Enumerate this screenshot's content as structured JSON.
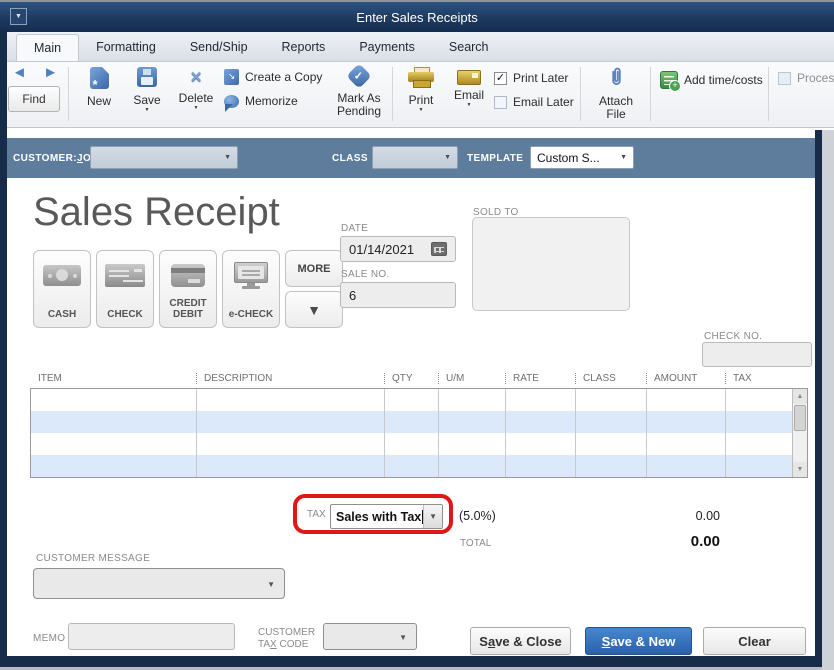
{
  "window": {
    "title": "Enter Sales Receipts"
  },
  "tabs": [
    "Main",
    "Formatting",
    "Send/Ship",
    "Reports",
    "Payments",
    "Search"
  ],
  "toolbar": {
    "find": "Find",
    "new": "New",
    "save": "Save",
    "delete": "Delete",
    "create_copy": "Create a Copy",
    "memorize": "Memorize",
    "mark_pending_line1": "Mark As",
    "mark_pending_line2": "Pending",
    "print": "Print",
    "email": "Email",
    "print_later": "Print Later",
    "email_later": "Email Later",
    "attach_line1": "Attach",
    "attach_line2": "File",
    "add_time_costs": "Add time/costs",
    "process_partial": "Proces"
  },
  "context_bar": {
    "customer_job": {
      "pre": "CUSTOMER:",
      "key": "J",
      "post": "OB"
    },
    "class_label": "CLASS",
    "template_label": "TEMPLATE",
    "template_value": "Custom S..."
  },
  "receipt": {
    "heading": "Sales Receipt",
    "payment_methods": [
      "CASH",
      "CHECK",
      "CREDIT DEBIT",
      "e-CHECK"
    ],
    "more_label": "MORE",
    "date_label": "DATE",
    "date_value": "01/14/2021",
    "sale_no_label": "SALE NO.",
    "sale_no_value": "6",
    "sold_to_label": "SOLD TO",
    "check_no_label": "CHECK NO."
  },
  "items_table": {
    "columns": [
      "ITEM",
      "DESCRIPTION",
      "QTY",
      "U/M",
      "RATE",
      "CLASS",
      "AMOUNT",
      "TAX"
    ],
    "row_count": 4
  },
  "totals": {
    "tax_label": "TAX",
    "tax_dropdown_value": "Sales with Tax",
    "tax_rate": "(5.0%)",
    "tax_amount": "0.00",
    "total_label": "TOTAL",
    "total_amount": "0.00"
  },
  "footer": {
    "customer_message_label": "CUSTOMER MESSAGE",
    "memo_label": "MEMO",
    "customer_tax_code_line1": "CUSTOMER",
    "customer_tax_code_line2": {
      "pre": "TA",
      "key": "X",
      "post": " CODE"
    },
    "save_close": {
      "pre": "S",
      "key": "a",
      "post": "ve & Close"
    },
    "save_new": {
      "pre": "",
      "key": "S",
      "post": "ave & New"
    },
    "clear": "Clear"
  },
  "icons": {
    "window_menu": "▼",
    "back": "◄",
    "forward": "►",
    "dropdown": "▼",
    "up": "▲",
    "down": "▼",
    "check": "✓",
    "x": "×",
    "copy_arrow": "↘",
    "more_arrow": "▼"
  },
  "colors": {
    "titlebar": "#1d3a5f",
    "context_bar": "#5e7d9c",
    "row_stripe": "#dbe9fa",
    "annotation_red": "#e01717",
    "primary_button": "#2e6cb5",
    "accent_icon_blue": "#4a7fc1",
    "icon_gold": "#c8a237",
    "icon_green": "#3f9c4a"
  }
}
